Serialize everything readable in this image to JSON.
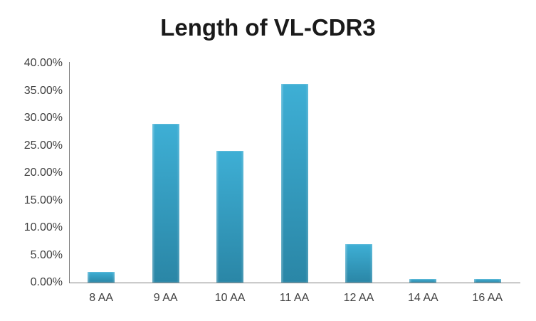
{
  "title": "Length of VL-CDR3",
  "chart_data": {
    "type": "bar",
    "title": "Length of VL-CDR3",
    "categories": [
      "8 AA",
      "9 AA",
      "10 AA",
      "11 AA",
      "12 AA",
      "14 AA",
      "16 AA"
    ],
    "values": [
      2.0,
      29.0,
      24.0,
      36.2,
      7.0,
      0.7,
      0.7
    ],
    "y_ticks": [
      "40.00%",
      "35.00%",
      "30.00%",
      "25.00%",
      "20.00%",
      "15.00%",
      "10.00%",
      "5.00%",
      "0.00%"
    ],
    "ylim": [
      0,
      40
    ],
    "xlabel": "",
    "ylabel": "",
    "grid": false,
    "legend": false,
    "colors": {
      "bar_top": "#3eafd5",
      "bar_bottom": "#2a86a6",
      "axis": "#7f7f7f",
      "tick_text": "#3f3f3f",
      "title_text": "#1a1a1a",
      "background": "#ffffff"
    }
  }
}
